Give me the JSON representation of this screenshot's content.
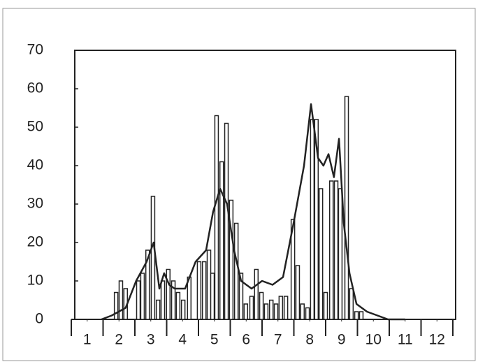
{
  "chart_data": {
    "type": "bar",
    "xlim": [
      0,
      12
    ],
    "ylim": [
      0,
      70
    ],
    "yticks": [
      0,
      10,
      20,
      30,
      40,
      50,
      60,
      70
    ],
    "xticks": [
      {
        "value": 0.5,
        "label": "1"
      },
      {
        "value": 1.5,
        "label": "2"
      },
      {
        "value": 2.5,
        "label": "3"
      },
      {
        "value": 3.5,
        "label": "4"
      },
      {
        "value": 4.5,
        "label": "5"
      },
      {
        "value": 5.5,
        "label": "6"
      },
      {
        "value": 6.5,
        "label": "7"
      },
      {
        "value": 7.5,
        "label": "8"
      },
      {
        "value": 8.5,
        "label": "9"
      },
      {
        "value": 9.5,
        "label": "10"
      },
      {
        "value": 10.5,
        "label": "11"
      },
      {
        "value": 11.5,
        "label": "12"
      }
    ],
    "series": [
      {
        "type": "bar",
        "color": "#222",
        "x": [
          1.41,
          1.56,
          1.71,
          2.11,
          2.24,
          2.4,
          2.57,
          2.73,
          2.88,
          3.05,
          3.21,
          3.36,
          3.52,
          3.71,
          4.02,
          4.18,
          4.33,
          4.44,
          4.57,
          4.73,
          4.88,
          5.03,
          5.19,
          5.34,
          5.49,
          5.67,
          5.82,
          5.98,
          6.13,
          6.29,
          6.44,
          6.59,
          6.75,
          6.97,
          7.12,
          7.27,
          7.43,
          7.58,
          7.71,
          7.85,
          8.0,
          8.18,
          8.33,
          8.46,
          8.66,
          8.81,
          8.97,
          9.12
        ],
        "values": [
          7,
          10,
          8,
          10,
          12,
          18,
          32,
          5,
          10,
          13,
          10,
          7,
          5,
          11,
          15,
          15,
          18,
          12,
          53,
          41,
          51,
          31,
          25,
          12,
          4,
          6,
          13,
          7,
          4,
          5,
          4,
          6,
          6,
          26,
          14,
          4,
          3,
          52,
          52,
          34,
          7,
          36,
          36,
          34,
          58,
          8,
          2,
          2
        ]
      },
      {
        "type": "line",
        "color": "#222",
        "x": [
          0.95,
          1.27,
          1.71,
          2.04,
          2.37,
          2.59,
          2.77,
          2.92,
          3.08,
          3.25,
          3.58,
          3.91,
          4.24,
          4.46,
          4.68,
          4.9,
          5.12,
          5.34,
          5.67,
          6.0,
          6.33,
          6.66,
          6.99,
          7.32,
          7.54,
          7.76,
          7.93,
          8.09,
          8.26,
          8.42,
          8.57,
          8.75,
          8.97,
          9.3,
          9.63,
          9.96,
          10.5
        ],
        "values": [
          0,
          1,
          3,
          10,
          15,
          20,
          8,
          12,
          9,
          8,
          8,
          15,
          18,
          28,
          34,
          30,
          18,
          10,
          8,
          10,
          9,
          11,
          25,
          40,
          56,
          42,
          40,
          43,
          37,
          47,
          25,
          12,
          4,
          2,
          1,
          0,
          0
        ]
      }
    ]
  }
}
